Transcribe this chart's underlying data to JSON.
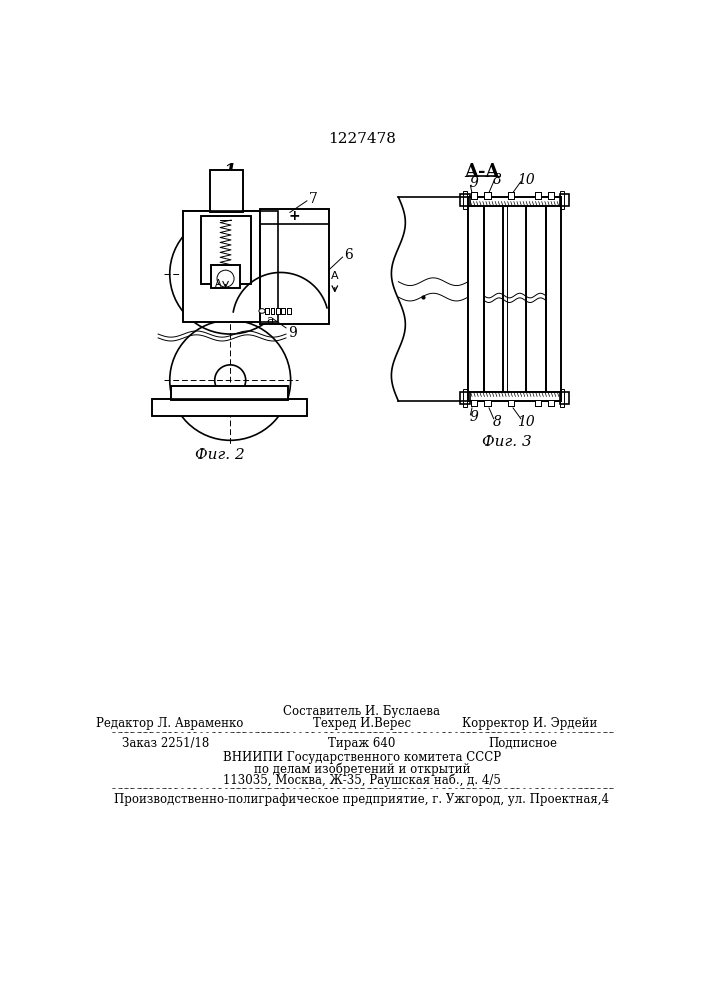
{
  "patent_number": "1227478",
  "fig2_label": "1",
  "fig2_caption": "Фиг. 2",
  "fig3_label": "A-A",
  "fig3_caption": "Фиг. 3",
  "bg_color": "#ffffff",
  "line_color": "#000000",
  "text_line0_center": "Составитель И. Буслаева",
  "text_line1_left": "Редактор Л. Авраменко",
  "text_line1_center": "Техред И.Верес",
  "text_line1_right": "Корректор И. Эрдейи",
  "text_line2_left": "Заказ 2251/18",
  "text_line2_center": "Тираж 640",
  "text_line2_right": "Подписное",
  "text_line3": "ВНИИПИ Государственного комитета СССР",
  "text_line4": "по делам изобретений и открытий",
  "text_line5": "113035, Москва, Ж-35, Раушская наб., д. 4/5",
  "text_line6": "Производственно-полиграфическое предприятие, г. Ужгород, ул. Проектная,4"
}
